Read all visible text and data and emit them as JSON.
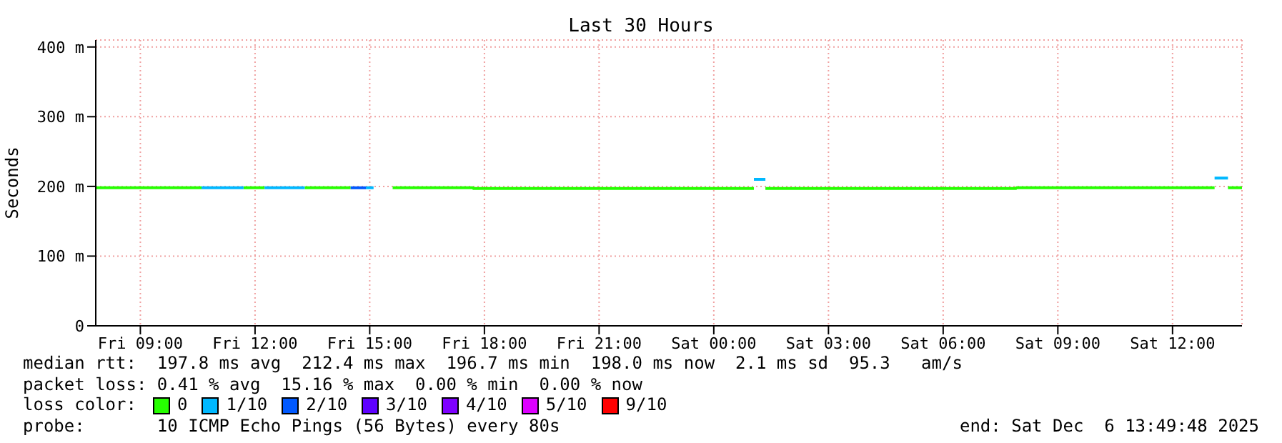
{
  "chart_data": {
    "type": "line",
    "title": "Last 30 Hours",
    "ylabel": "Seconds",
    "xlim": [
      "2025-12-05T07:50",
      "2025-12-06T13:49"
    ],
    "xticks": [
      {
        "value": "2025-12-05T09:00",
        "label": "Fri 09:00"
      },
      {
        "value": "2025-12-05T12:00",
        "label": "Fri 12:00"
      },
      {
        "value": "2025-12-05T15:00",
        "label": "Fri 15:00"
      },
      {
        "value": "2025-12-05T18:00",
        "label": "Fri 18:00"
      },
      {
        "value": "2025-12-05T21:00",
        "label": "Fri 21:00"
      },
      {
        "value": "2025-12-06T00:00",
        "label": "Sat 00:00"
      },
      {
        "value": "2025-12-06T03:00",
        "label": "Sat 03:00"
      },
      {
        "value": "2025-12-06T06:00",
        "label": "Sat 06:00"
      },
      {
        "value": "2025-12-06T09:00",
        "label": "Sat 09:00"
      },
      {
        "value": "2025-12-06T12:00",
        "label": "Sat 12:00"
      }
    ],
    "ylim": [
      0,
      410
    ],
    "yticks": [
      0,
      {
        "value": 100,
        "label": "100 m"
      },
      {
        "value": 200,
        "label": "200 m"
      },
      {
        "value": 300,
        "label": "300 m"
      },
      {
        "value": 400,
        "label": "400 m"
      }
    ],
    "grid": true,
    "legend": "bottom",
    "legend_title": "loss color:",
    "marker": "none",
    "line_style": "solid",
    "series": [
      {
        "name": "0",
        "color": "#26ff00",
        "x": [
          "2025-12-05T07:50",
          "2025-12-05T10:36",
          "2025-12-05T10:37",
          "2025-12-05T11:42",
          "2025-12-05T12:15",
          "2025-12-05T12:16",
          "2025-12-05T13:18",
          "2025-12-05T14:30",
          "2025-12-05T14:31",
          "2025-12-05T15:36",
          "2025-12-05T17:42",
          "2025-12-05T17:43",
          "2025-12-06T01:03",
          "2025-12-06T01:04",
          "2025-12-06T01:21",
          "2025-12-06T07:54",
          "2025-12-06T07:55",
          "2025-12-06T13:06",
          "2025-12-06T13:07",
          "2025-12-06T13:27",
          "2025-12-06T13:49"
        ],
        "values": [
          198,
          198,
          null,
          198,
          198,
          null,
          198,
          198,
          null,
          198,
          198,
          197,
          197,
          null,
          197,
          197,
          198,
          198,
          null,
          198,
          198
        ]
      },
      {
        "name": "1/10",
        "color": "#00b8ff",
        "x": [
          "2025-12-05T10:36",
          "2025-12-05T11:42",
          "2025-12-05T11:43",
          "2025-12-05T12:15",
          "2025-12-05T13:18",
          "2025-12-05T13:19",
          "2025-12-05T14:54",
          "2025-12-05T15:06",
          "2025-12-05T15:07",
          "2025-12-06T01:03",
          "2025-12-06T01:21",
          "2025-12-06T01:22",
          "2025-12-06T13:06",
          "2025-12-06T13:27"
        ],
        "values": [
          198,
          198,
          null,
          198,
          198,
          null,
          198,
          198,
          null,
          210,
          210,
          null,
          212,
          212
        ]
      },
      {
        "name": "2/10",
        "color": "#0059ff",
        "x": [
          "2025-12-05T14:30",
          "2025-12-05T14:54"
        ],
        "values": [
          198,
          198
        ]
      },
      {
        "name": "3/10",
        "color": "#5e00ff"
      },
      {
        "name": "4/10",
        "color": "#7e00ff"
      },
      {
        "name": "5/10",
        "color": "#dd00ff"
      },
      {
        "name": "9/10",
        "color": "#ff0000"
      }
    ],
    "annotations": [
      "median rtt:  197.8 ms avg  212.4 ms max  196.7 ms min  198.0 ms now  2.1 ms sd  95.3   am/s",
      "packet loss: 0.41 % avg  15.16 % max  0.00 % min  0.00 % now",
      "probe:       10 ICMP Echo Pings (56 Bytes) every 80s",
      "end: Sat Dec  6 13:49:48 2025"
    ]
  }
}
